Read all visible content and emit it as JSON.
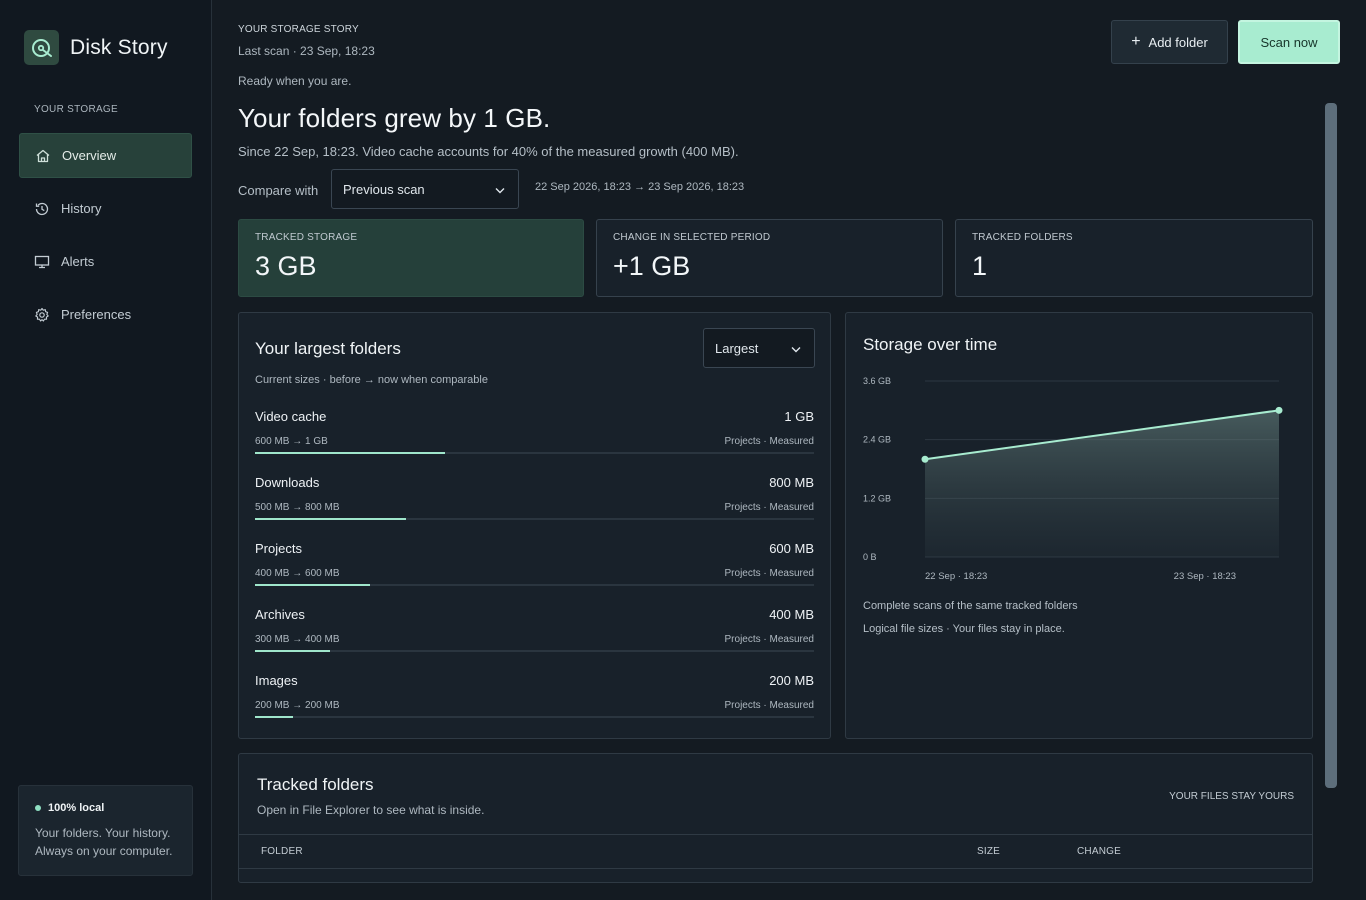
{
  "app": {
    "name": "Disk Story"
  },
  "sidebar": {
    "section_label": "YOUR STORAGE",
    "items": [
      {
        "label": "Overview",
        "icon": "home-icon",
        "active": true
      },
      {
        "label": "History",
        "icon": "history-icon",
        "active": false
      },
      {
        "label": "Alerts",
        "icon": "monitor-icon",
        "active": false
      },
      {
        "label": "Preferences",
        "icon": "gear-icon",
        "active": false
      }
    ],
    "local_card": {
      "title": "100% local",
      "line1": "Your folders. Your history.",
      "line2": "Always on your computer."
    }
  },
  "header": {
    "kicker": "YOUR STORAGE STORY",
    "last_scan": "Last scan · 23 Sep, 18:23",
    "ready": "Ready when you are.",
    "headline": "Your folders grew by 1 GB.",
    "subline": "Since 22 Sep, 18:23. Video cache accounts for 40% of the measured growth (400 MB).",
    "add_folder_label": "Add folder",
    "scan_now_label": "Scan now"
  },
  "compare": {
    "label": "Compare with",
    "selected": "Previous scan",
    "range": "22 Sep 2026, 18:23 → 23 Sep 2026, 18:23"
  },
  "stats": [
    {
      "label": "TRACKED STORAGE",
      "value": "3 GB"
    },
    {
      "label": "CHANGE IN SELECTED PERIOD",
      "value": "+1 GB"
    },
    {
      "label": "TRACKED FOLDERS",
      "value": "1"
    }
  ],
  "largest": {
    "title": "Your largest folders",
    "subtitle": "Current sizes · before → now when comparable",
    "sort_selected": "Largest",
    "folders": [
      {
        "name": "Video cache",
        "size": "1 GB",
        "delta": "600 MB → 1 GB",
        "meta": "Projects · Measured",
        "fill": 0.34
      },
      {
        "name": "Downloads",
        "size": "800 MB",
        "delta": "500 MB → 800 MB",
        "meta": "Projects · Measured",
        "fill": 0.27
      },
      {
        "name": "Projects",
        "size": "600 MB",
        "delta": "400 MB → 600 MB",
        "meta": "Projects · Measured",
        "fill": 0.205
      },
      {
        "name": "Archives",
        "size": "400 MB",
        "delta": "300 MB → 400 MB",
        "meta": "Projects · Measured",
        "fill": 0.135
      },
      {
        "name": "Images",
        "size": "200 MB",
        "delta": "200 MB → 200 MB",
        "meta": "Projects · Measured",
        "fill": 0.068
      }
    ]
  },
  "storage_chart": {
    "title": "Storage over time",
    "note1": "Complete scans of the same tracked folders",
    "note2": "Logical file sizes · Your files stay in place."
  },
  "chart_data": {
    "type": "area",
    "title": "Storage over time",
    "x": [
      "22 Sep · 18:23",
      "23 Sep · 18:23"
    ],
    "series": [
      {
        "values": [
          2.0,
          3.0
        ]
      }
    ],
    "y_ticks": [
      "0 B",
      "1.2 GB",
      "2.4 GB",
      "3.6 GB"
    ],
    "ylim": [
      0,
      3.6
    ],
    "yunit": "GB",
    "grid": true,
    "color": "#a8ecd0"
  },
  "tracked": {
    "title": "Tracked folders",
    "subtitle": "Open in File Explorer to see what is inside.",
    "badge": "YOUR FILES STAY YOURS",
    "columns": [
      "FOLDER",
      "SIZE",
      "CHANGE"
    ]
  },
  "colors": {
    "accent": "#a8ecd0",
    "active_nav": "#27413a",
    "background": "#141b22"
  }
}
